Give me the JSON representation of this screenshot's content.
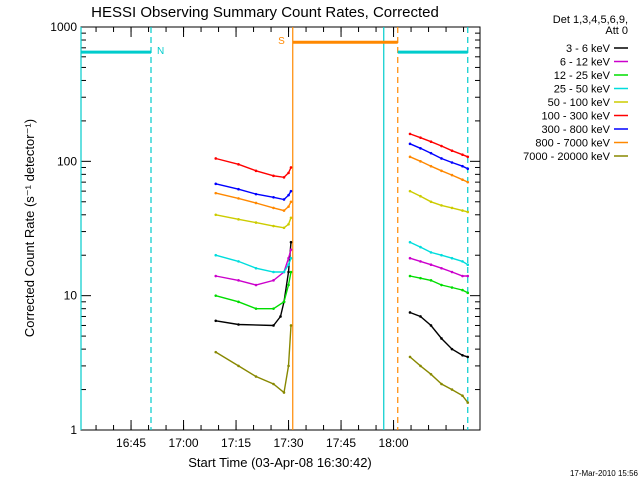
{
  "chart_data": {
    "type": "line",
    "title": "HESSI Observing Summary Count Rates, Corrected",
    "xlabel": "Start Time (03-Apr-08 16:30:42)",
    "ylabel": "Corrected Count Rate (s⁻¹ detector⁻¹)",
    "yscale": "log",
    "xlim": [
      0,
      114
    ],
    "ylim": [
      1,
      1000
    ],
    "x_unit": "minutes after 16:30:42",
    "x_ticks": [
      {
        "label": "16:45",
        "x": 14.3
      },
      {
        "label": "17:00",
        "x": 29.3
      },
      {
        "label": "17:15",
        "x": 44.3
      },
      {
        "label": "17:30",
        "x": 59.3
      },
      {
        "label": "17:45",
        "x": 74.3
      },
      {
        "label": "18:00",
        "x": 89.3
      }
    ],
    "y_ticks": [
      {
        "label": "1",
        "y": 1
      },
      {
        "label": "10",
        "y": 10
      },
      {
        "label": "100",
        "y": 100
      },
      {
        "label": "1000",
        "y": 1000
      }
    ],
    "legend_header": [
      "Det 1,3,4,5,6,9,",
      "Att 0"
    ],
    "legend_position": "right",
    "series": [
      {
        "name": "3 - 6 keV",
        "color": "#000000",
        "segments": [
          {
            "x": [
              38.5,
              45,
              55,
              57,
              58,
              59.3,
              60
            ],
            "y": [
              6.5,
              6.1,
              6.0,
              7.0,
              9.0,
              15,
              25
            ]
          },
          {
            "x": [
              94,
              97,
              100,
              103,
              106,
              109,
              110.5
            ],
            "y": [
              7.5,
              7.0,
              6.0,
              4.8,
              4.0,
              3.6,
              3.5
            ]
          }
        ]
      },
      {
        "name": "6 - 12 keV",
        "color": "#cc00cc",
        "segments": [
          {
            "x": [
              38.5,
              45,
              50,
              55,
              58,
              59.3,
              60
            ],
            "y": [
              14,
              13,
              12,
              13,
              15,
              19,
              22
            ]
          },
          {
            "x": [
              94,
              97,
              100,
              103,
              106,
              109,
              110.5
            ],
            "y": [
              19,
              18,
              17,
              16,
              15,
              14,
              14
            ]
          }
        ]
      },
      {
        "name": "12 - 25 keV",
        "color": "#00dd00",
        "segments": [
          {
            "x": [
              38.5,
              45,
              50,
              55,
              58,
              59.3,
              60
            ],
            "y": [
              10,
              9.0,
              8.0,
              8.0,
              9.0,
              12,
              15
            ]
          },
          {
            "x": [
              94,
              97,
              100,
              103,
              106,
              109,
              110.5
            ],
            "y": [
              14,
              13.5,
              13,
              12,
              11.5,
              11,
              10.5
            ]
          }
        ]
      },
      {
        "name": "25 - 50 keV",
        "color": "#00dddd",
        "segments": [
          {
            "x": [
              38.5,
              45,
              50,
              55,
              58,
              59.3,
              60
            ],
            "y": [
              20,
              18,
              16,
              15,
              15,
              17,
              19
            ]
          },
          {
            "x": [
              94,
              97,
              100,
              103,
              106,
              109,
              110.5
            ],
            "y": [
              25,
              23,
              21,
              20,
              19,
              18,
              17
            ]
          }
        ]
      },
      {
        "name": "50 - 100 keV",
        "color": "#cccc00",
        "segments": [
          {
            "x": [
              38.5,
              45,
              50,
              55,
              58,
              59.3,
              60
            ],
            "y": [
              40,
              37,
              35,
              33,
              32,
              34,
              38
            ]
          },
          {
            "x": [
              94,
              97,
              100,
              103,
              106,
              109,
              110.5
            ],
            "y": [
              60,
              55,
              50,
              47,
              45,
              43,
              42
            ]
          }
        ]
      },
      {
        "name": "100 - 300 keV",
        "color": "#ff0000",
        "segments": [
          {
            "x": [
              38.5,
              45,
              50,
              55,
              58,
              59.3,
              60
            ],
            "y": [
              105,
              95,
              85,
              78,
              76,
              82,
              90
            ]
          },
          {
            "x": [
              94,
              97,
              100,
              103,
              106,
              109,
              110.5
            ],
            "y": [
              160,
              150,
              140,
              130,
              120,
              112,
              108
            ]
          }
        ]
      },
      {
        "name": "300 - 800 keV",
        "color": "#0000ff",
        "segments": [
          {
            "x": [
              38.5,
              45,
              50,
              55,
              58,
              59.3,
              60
            ],
            "y": [
              68,
              62,
              57,
              54,
              52,
              56,
              60
            ]
          },
          {
            "x": [
              94,
              97,
              100,
              103,
              106,
              109,
              110.5
            ],
            "y": [
              135,
              125,
              115,
              105,
              98,
              92,
              88
            ]
          }
        ]
      },
      {
        "name": "800 - 7000 keV",
        "color": "#ff8800",
        "segments": [
          {
            "x": [
              38.5,
              45,
              50,
              55,
              58,
              59.3,
              60
            ],
            "y": [
              58,
              53,
              49,
              45,
              43,
              46,
              50
            ]
          },
          {
            "x": [
              94,
              97,
              100,
              103,
              106,
              109,
              110.5
            ],
            "y": [
              108,
              100,
              92,
              85,
              79,
              73,
              70
            ]
          }
        ]
      },
      {
        "name": "7000 - 20000 keV",
        "color": "#888800",
        "segments": [
          {
            "x": [
              38.5,
              45,
              50,
              55,
              58,
              59.3,
              60
            ],
            "y": [
              3.8,
              3.0,
              2.5,
              2.2,
              1.9,
              3.0,
              6.0
            ]
          },
          {
            "x": [
              94,
              97,
              100,
              103,
              106,
              109,
              110.5
            ],
            "y": [
              3.5,
              3.0,
              2.6,
              2.2,
              2.0,
              1.8,
              1.6
            ]
          }
        ]
      }
    ],
    "markers": [
      {
        "label": "N",
        "color": "#00cccc",
        "x_from": 0,
        "x_to": 20,
        "level": 650
      },
      {
        "label": "S",
        "color": "#ff8800",
        "x_from": 60.5,
        "x_to": 90.5,
        "level": 770
      },
      {
        "label": "",
        "color": "#00cccc",
        "x_from": 90.5,
        "x_to": 110.5,
        "level": 650
      }
    ],
    "vlines": [
      {
        "x": 0,
        "color": "#00cccc",
        "style": "solid"
      },
      {
        "x": 20,
        "color": "#00cccc",
        "style": "dashed"
      },
      {
        "x": 60.5,
        "color": "#ff8800",
        "style": "solid"
      },
      {
        "x": 86.5,
        "color": "#00cccc",
        "style": "solid"
      },
      {
        "x": 90.5,
        "color": "#ff8800",
        "style": "dashed"
      },
      {
        "x": 110.5,
        "color": "#00cccc",
        "style": "dashed"
      }
    ],
    "grid": false,
    "footer_timestamp": "17-Mar-2010 15:56"
  }
}
